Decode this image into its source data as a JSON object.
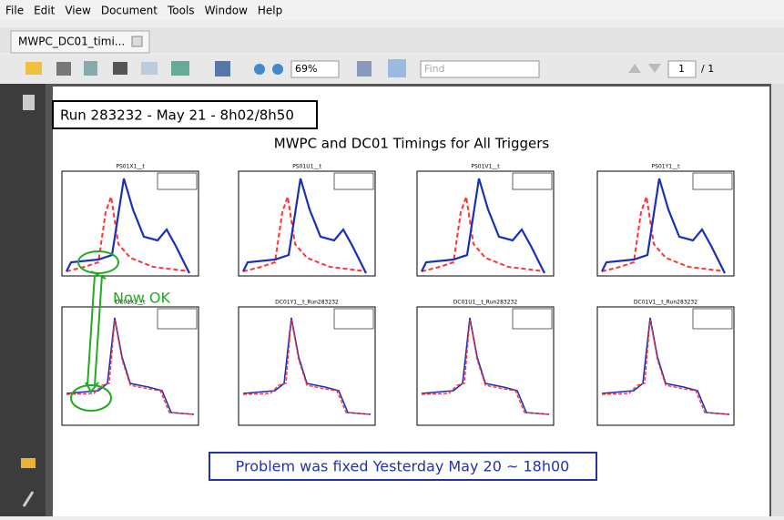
{
  "menu": [
    "File",
    "Edit",
    "View",
    "Document",
    "Tools",
    "Window",
    "Help"
  ],
  "tab": {
    "title": "MWPC_DC01_timi..."
  },
  "toolbar": {
    "zoom": "69%",
    "find": "Find",
    "page": "1",
    "page_total": "/ 1"
  },
  "document": {
    "run_label": "Run 283232  -  May 21  -  8h02/8h50",
    "title": "MWPC and DC01 Timings for All Triggers",
    "annotation": "Now OK",
    "footer": "Problem was fixed Yesterday May 20 ~  18h00",
    "plots": [
      "PS01X1__t",
      "PS01U1__t",
      "PS01V1__t",
      "PS01Y1__t",
      "DC01X1__t",
      "DC01Y1__t_Run283232",
      "DC01U1__t_Run283232",
      "DC01V1__t_Run283232"
    ]
  }
}
